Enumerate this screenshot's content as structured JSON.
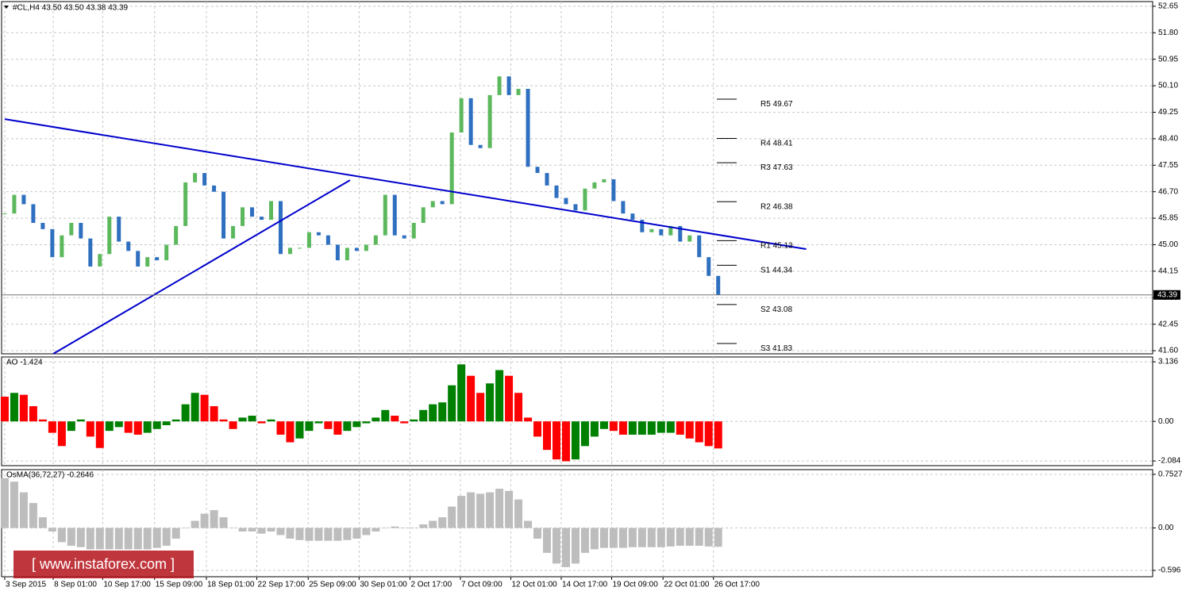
{
  "header": "#CL,H4 43.50 43.50 43.38 43.39",
  "watermark": "[ www.instaforex.com ]",
  "chart_data": [
    {
      "type": "price",
      "values": [
        46.0,
        46.6,
        46.3,
        45.7,
        45.5,
        44.6,
        45.3,
        45.7,
        45.2,
        44.3,
        44.7,
        45.9,
        45.1,
        44.8,
        44.3,
        44.6,
        44.5,
        45.0,
        45.6,
        47.0,
        47.3,
        46.9,
        46.7,
        45.2,
        45.6,
        46.2,
        45.9,
        45.8,
        46.4,
        44.7,
        44.9,
        44.9,
        45.4,
        45.3,
        45.0,
        44.5,
        44.9,
        44.8,
        45.0,
        45.3,
        46.6,
        45.3,
        45.2,
        45.7,
        46.2,
        46.4,
        46.3,
        48.6,
        49.7,
        48.2,
        48.1,
        49.8,
        50.4,
        49.8,
        50.0,
        47.5,
        47.3,
        46.9,
        46.5,
        46.3,
        46.1,
        46.8,
        47.0,
        47.1,
        46.4,
        46.0,
        45.8,
        45.4,
        45.5,
        45.3,
        45.6,
        45.1,
        45.3,
        44.6,
        44.0,
        43.39
      ],
      "up_color": "#5cb85c",
      "down_color": "#2f6fc0",
      "ylim": [
        41.5,
        52.8
      ],
      "yticks": [
        52.65,
        {
          "value": 51.8,
          "label": "51.80"
        },
        50.95,
        {
          "value": 50.1,
          "label": "50.10"
        },
        49.25,
        {
          "value": 48.4,
          "label": "48.40"
        },
        47.55,
        {
          "value": 46.7,
          "label": "46.70"
        },
        45.85,
        {
          "value": 45,
          "label": "45.00"
        },
        44.15,
        {
          "value": 43.3,
          "label": "43.30"
        },
        42.45,
        {
          "value": 41.6,
          "label": "41.60"
        }
      ],
      "grid": true,
      "trendlines": [
        {
          "x": [
            0,
            84.25
          ],
          "y": [
            49.03,
            44.86
          ],
          "color": "#0000cc"
        },
        {
          "x": [
            5.1,
            36.3
          ],
          "y": [
            41.5,
            47.07
          ],
          "color": "#0000cc"
        }
      ],
      "levels": [
        {
          "name": "R5",
          "value": 49.67
        },
        {
          "name": "R4",
          "value": 48.41
        },
        {
          "name": "R3",
          "value": 47.63
        },
        {
          "name": "R2",
          "value": 46.38
        },
        {
          "name": "R1",
          "value": 45.13
        },
        {
          "name": "S1",
          "value": 44.34
        },
        {
          "name": "S2",
          "value": 43.08
        },
        {
          "name": "S3",
          "value": 41.83
        }
      ]
    },
    {
      "type": "ao",
      "title": "AO -1.424",
      "values": [
        1.3,
        1.5,
        1.4,
        0.8,
        0.1,
        -0.6,
        -1.3,
        -0.5,
        0.1,
        -0.8,
        -1.4,
        -0.5,
        -0.3,
        -0.6,
        -0.7,
        -0.6,
        -0.4,
        -0.2,
        0.1,
        0.9,
        1.5,
        1.4,
        0.8,
        0.1,
        -0.4,
        0.2,
        0.3,
        -0.1,
        0.1,
        -0.7,
        -1.1,
        -0.9,
        -0.5,
        -0.1,
        -0.4,
        -0.7,
        -0.5,
        -0.3,
        -0.1,
        0.2,
        0.6,
        0.3,
        -0.1,
        0.1,
        0.6,
        0.9,
        1.0,
        1.9,
        3.0,
        2.4,
        1.5,
        2.0,
        2.7,
        2.4,
        1.5,
        0.2,
        -0.8,
        -1.5,
        -2.0,
        -2.1,
        -2.0,
        -1.3,
        -0.8,
        -0.4,
        -0.5,
        -0.7,
        -0.7,
        -0.7,
        -0.7,
        -0.6,
        -0.6,
        -0.7,
        -0.9,
        -1.1,
        -1.3,
        -1.424
      ],
      "up_color": "#008000",
      "down_color": "#ff0000",
      "ylim": [
        -2.33,
        3.39
      ],
      "yticks": [
        3.136,
        {
          "value": 0,
          "label": "0.00"
        },
        -2.084
      ],
      "grid": true
    },
    {
      "type": "osma",
      "title": "OsMA(36,72,27) -0.2646",
      "values": [
        0.7,
        0.65,
        0.5,
        0.35,
        0.15,
        -0.05,
        -0.2,
        -0.25,
        -0.27,
        -0.3,
        -0.3,
        -0.3,
        -0.3,
        -0.3,
        -0.3,
        -0.3,
        -0.28,
        -0.25,
        -0.15,
        0.0,
        0.1,
        0.2,
        0.25,
        0.15,
        0.0,
        -0.05,
        -0.05,
        -0.08,
        -0.05,
        -0.1,
        -0.15,
        -0.17,
        -0.18,
        -0.18,
        -0.18,
        -0.18,
        -0.17,
        -0.15,
        -0.1,
        -0.05,
        0.0,
        0.02,
        0.0,
        0.0,
        0.05,
        0.1,
        0.15,
        0.3,
        0.45,
        0.5,
        0.48,
        0.5,
        0.55,
        0.52,
        0.4,
        0.1,
        -0.15,
        -0.35,
        -0.5,
        -0.55,
        -0.5,
        -0.35,
        -0.3,
        -0.28,
        -0.28,
        -0.28,
        -0.27,
        -0.27,
        -0.27,
        -0.27,
        -0.26,
        -0.25,
        -0.25,
        -0.25,
        -0.26,
        -0.2646
      ],
      "color": "#bdbdbd",
      "ylim": [
        -0.685,
        0.819
      ],
      "yticks": [
        0.7527,
        {
          "value": 0,
          "label": "0.00"
        },
        -0.596
      ],
      "grid": true,
      "xlim": [
        -0.33,
        120.67
      ],
      "xticks": [
        {
          "value": 0,
          "label": "3 Sep 2015"
        },
        {
          "value": 5.1,
          "label": "8 Sep 01:00"
        },
        {
          "value": 10.3,
          "label": "10 Sep 17:00"
        },
        {
          "value": 15.75,
          "label": "15 Sep 09:00"
        },
        {
          "value": 21.2,
          "label": "18 Sep 01:00"
        },
        {
          "value": 26.5,
          "label": "22 Sep 17:00"
        },
        {
          "value": 31.9,
          "label": "25 Sep 09:00"
        },
        {
          "value": 37.25,
          "label": "30 Sep 01:00"
        },
        {
          "value": 42.6,
          "label": "2 Oct 17:00"
        },
        {
          "value": 47.9,
          "label": "7 Oct 09:00"
        },
        {
          "value": 53.2,
          "label": "12 Oct 01:00"
        },
        {
          "value": 58.5,
          "label": "14 Oct 17:00"
        },
        {
          "value": 63.8,
          "label": "19 Oct 09:00"
        },
        {
          "value": 69.2,
          "label": "22 Oct 01:00"
        },
        {
          "value": 74.5,
          "label": "26 Oct 17:00"
        }
      ]
    }
  ]
}
